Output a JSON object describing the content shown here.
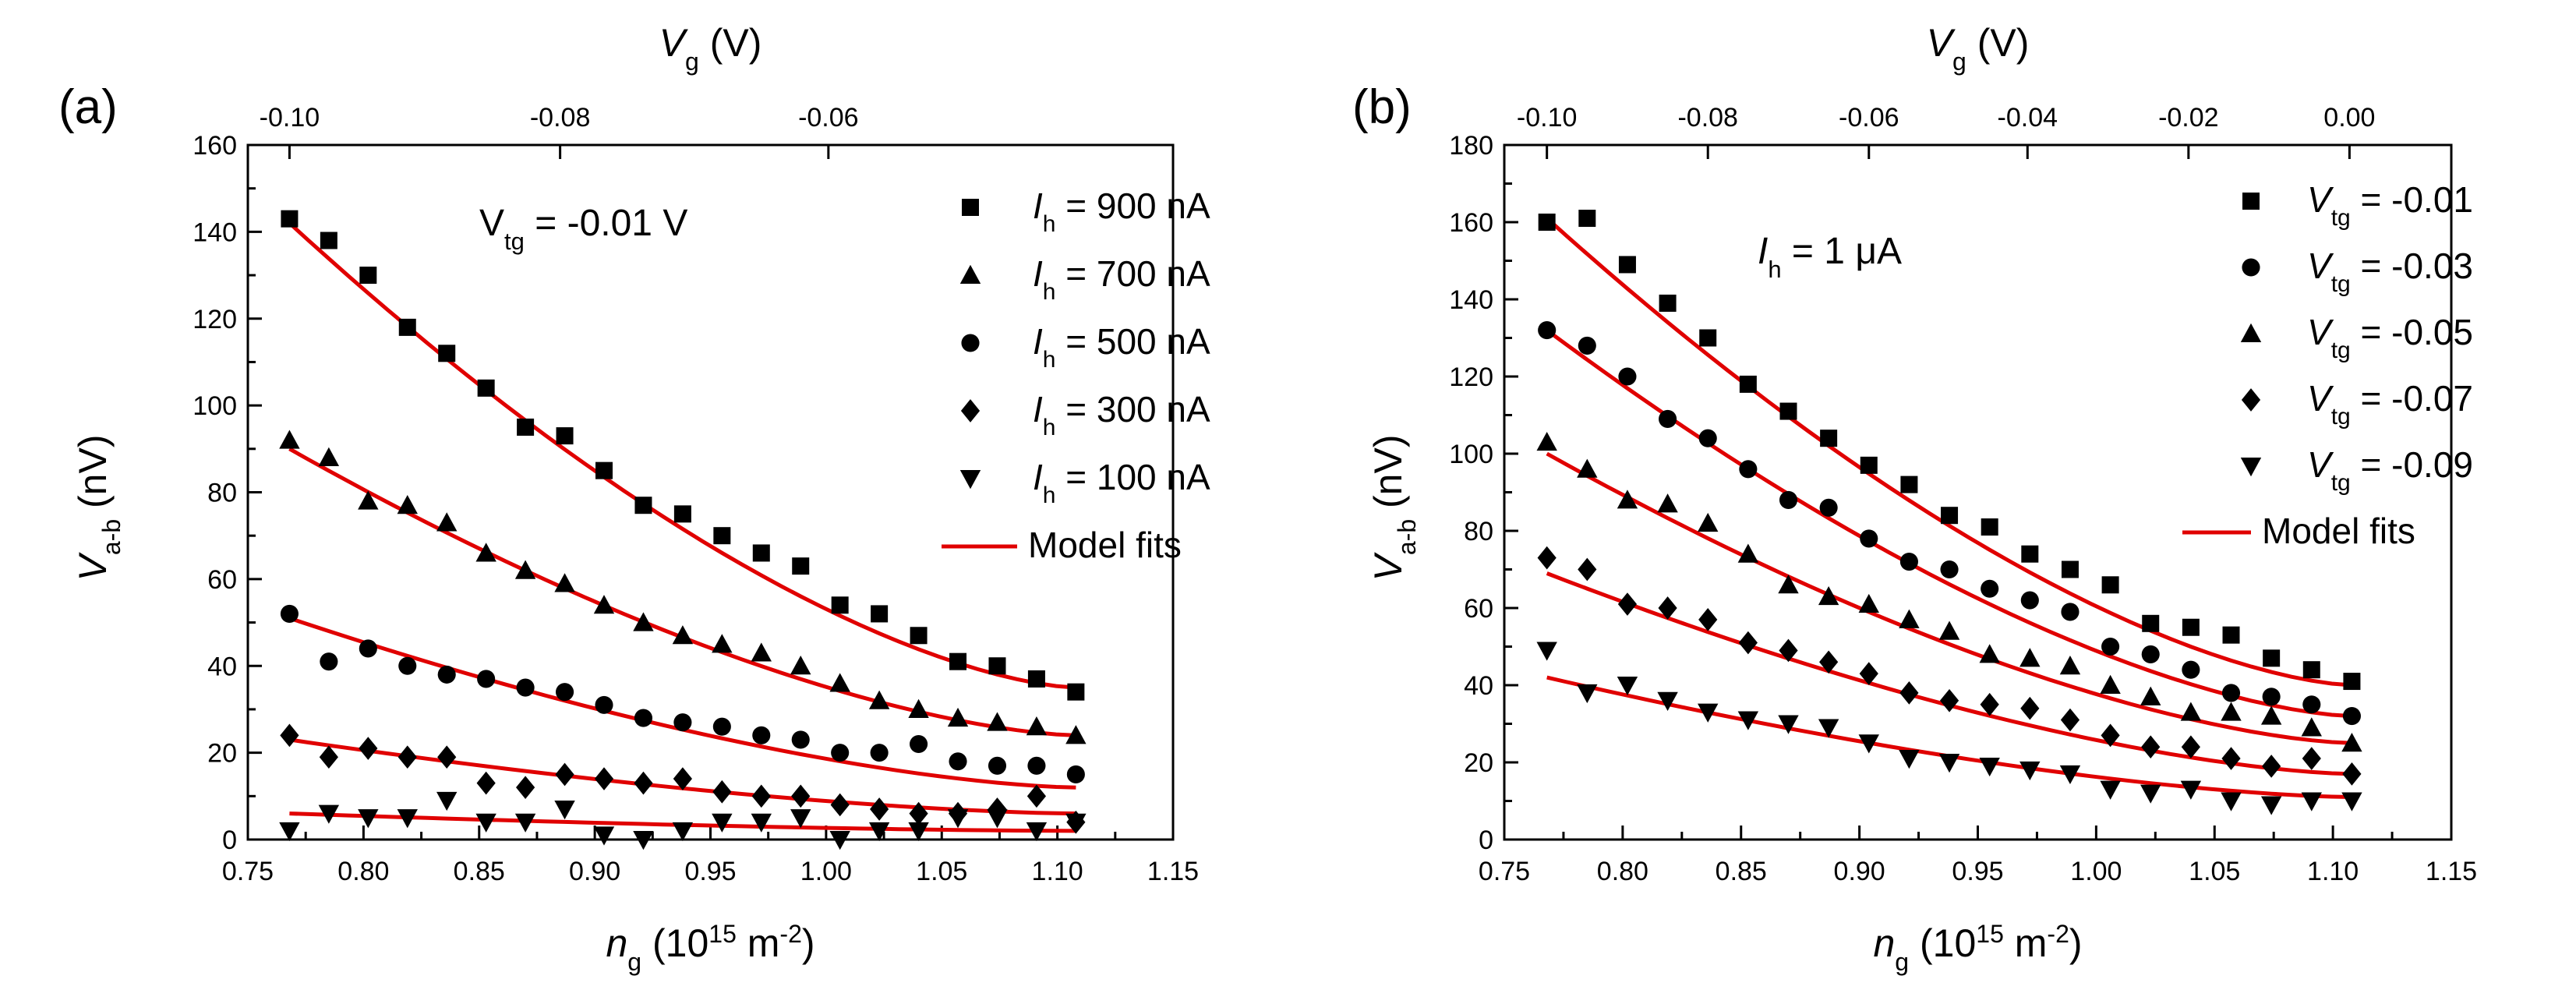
{
  "chart_data": [
    {
      "type": "scatter",
      "panel_label": "(a)",
      "annotation": {
        "symbol": "V",
        "sub": "tg",
        "text": " = -0.01 V"
      },
      "xlabel": {
        "symbol": "n",
        "sub": "g",
        "text": " (10",
        "sup": "15",
        "text2": " m",
        "sup2": "-2",
        "text3": ")"
      },
      "ylabel": {
        "symbol": "V",
        "sub": "a-b",
        "text": " (nV)"
      },
      "top_label": {
        "symbol": "V",
        "sub": "g",
        "text": " (V)"
      },
      "xlim": [
        0.75,
        1.15
      ],
      "ylim": [
        0,
        160
      ],
      "x_ticks": [
        "0.75",
        "0.80",
        "0.85",
        "0.90",
        "0.95",
        "1.00",
        "1.05",
        "1.10",
        "1.15"
      ],
      "y_ticks": [
        "0",
        "20",
        "40",
        "60",
        "80",
        "100",
        "120",
        "140",
        "160"
      ],
      "top_ticks": [
        {
          "label": "-0.10",
          "x": 0.768
        },
        {
          "label": "-0.08",
          "x": 0.885
        },
        {
          "label": "-0.06",
          "x": 1.001
        }
      ],
      "legend_location": "top-right",
      "x": [
        0.768,
        0.785,
        0.802,
        0.819,
        0.836,
        0.853,
        0.87,
        0.887,
        0.904,
        0.921,
        0.938,
        0.955,
        0.972,
        0.989,
        1.006,
        1.023,
        1.04,
        1.057,
        1.074,
        1.091,
        1.108
      ],
      "series": [
        {
          "name": "900 nA",
          "prefix": "I",
          "sub": "h",
          "marker": "square",
          "values": [
            143,
            138,
            130,
            118,
            112,
            104,
            95,
            93,
            85,
            77,
            75,
            70,
            66,
            63,
            54,
            52,
            47,
            41,
            40,
            37,
            34
          ]
        },
        {
          "name": "700 nA",
          "prefix": "I",
          "sub": "h",
          "marker": "triangle-up",
          "values": [
            92,
            88,
            78,
            77,
            73,
            66,
            62,
            59,
            54,
            50,
            47,
            45,
            43,
            40,
            36,
            32,
            30,
            28,
            27,
            26,
            24
          ]
        },
        {
          "name": "500 nA",
          "prefix": "I",
          "sub": "h",
          "marker": "circle",
          "values": [
            52,
            41,
            44,
            40,
            38,
            37,
            35,
            34,
            31,
            28,
            27,
            26,
            24,
            23,
            20,
            20,
            22,
            18,
            17,
            17,
            15
          ]
        },
        {
          "name": "300 nA",
          "prefix": "I",
          "sub": "h",
          "marker": "diamond",
          "values": [
            24,
            19,
            21,
            19,
            19,
            13,
            12,
            15,
            14,
            13,
            14,
            11,
            10,
            10,
            8,
            7,
            6,
            6,
            7,
            10,
            4
          ]
        },
        {
          "name": "100 nA",
          "prefix": "I",
          "sub": "h",
          "marker": "triangle-down",
          "values": [
            2,
            6,
            5,
            5,
            9,
            4,
            4,
            7,
            1,
            0,
            2,
            4,
            4,
            5,
            0,
            2,
            2,
            5,
            5,
            2,
            4
          ]
        }
      ],
      "fits": [
        [
          142,
          35
        ],
        [
          90,
          24
        ],
        [
          51,
          12
        ],
        [
          23,
          6
        ],
        [
          6,
          2
        ]
      ],
      "fit_legend": "Model fits"
    },
    {
      "type": "scatter",
      "panel_label": "(b)",
      "annotation": {
        "symbol": "I",
        "sub": "h",
        "text": " = 1 μA"
      },
      "xlabel": {
        "symbol": "n",
        "sub": "g",
        "text": " (10",
        "sup": "15",
        "text2": " m",
        "sup2": "-2",
        "text3": ")"
      },
      "ylabel": {
        "symbol": "V",
        "sub": "a-b",
        "text": " (nV)"
      },
      "top_label": {
        "symbol": "V",
        "sub": "g",
        "text": " (V)"
      },
      "xlim": [
        0.75,
        1.15
      ],
      "ylim": [
        0,
        180
      ],
      "x_ticks": [
        "0.75",
        "0.80",
        "0.85",
        "0.90",
        "0.95",
        "1.00",
        "1.05",
        "1.10",
        "1.15"
      ],
      "y_ticks": [
        "0",
        "20",
        "40",
        "60",
        "80",
        "100",
        "120",
        "140",
        "160",
        "180"
      ],
      "top_ticks": [
        {
          "label": "-0.10",
          "x": 0.768
        },
        {
          "label": "-0.08",
          "x": 0.836
        },
        {
          "label": "-0.06",
          "x": 0.904
        },
        {
          "label": "-0.04",
          "x": 0.971
        },
        {
          "label": "-0.02",
          "x": 1.039
        },
        {
          "label": "0.00",
          "x": 1.107
        }
      ],
      "legend_location": "top-right",
      "x": [
        0.768,
        0.785,
        0.802,
        0.819,
        0.836,
        0.853,
        0.87,
        0.887,
        0.904,
        0.921,
        0.938,
        0.955,
        0.972,
        0.989,
        1.006,
        1.023,
        1.04,
        1.057,
        1.074,
        1.091,
        1.108
      ],
      "series": [
        {
          "name": "-0.01",
          "prefix": "V",
          "sub": "tg",
          "marker": "square",
          "values": [
            160,
            161,
            149,
            139,
            130,
            118,
            111,
            104,
            97,
            92,
            84,
            81,
            74,
            70,
            66,
            56,
            55,
            53,
            47,
            44,
            41
          ]
        },
        {
          "name": "-0.03",
          "prefix": "V",
          "sub": "tg",
          "marker": "circle",
          "values": [
            132,
            128,
            120,
            109,
            104,
            96,
            88,
            86,
            78,
            72,
            70,
            65,
            62,
            59,
            50,
            48,
            44,
            38,
            37,
            35,
            32
          ]
        },
        {
          "name": "-0.05",
          "prefix": "V",
          "sub": "tg",
          "marker": "triangle-up",
          "values": [
            103,
            96,
            88,
            87,
            82,
            74,
            66,
            63,
            61,
            57,
            54,
            48,
            47,
            45,
            40,
            37,
            33,
            33,
            32,
            29,
            25
          ]
        },
        {
          "name": "-0.07",
          "prefix": "V",
          "sub": "tg",
          "marker": "diamond",
          "values": [
            73,
            70,
            61,
            60,
            57,
            51,
            49,
            46,
            43,
            38,
            36,
            35,
            34,
            31,
            27,
            24,
            24,
            21,
            19,
            21,
            17
          ]
        },
        {
          "name": "-0.09",
          "prefix": "V",
          "sub": "tg",
          "marker": "triangle-down",
          "values": [
            49,
            38,
            40,
            36,
            33,
            31,
            30,
            29,
            25,
            21,
            20,
            19,
            18,
            17,
            13,
            12,
            13,
            10,
            9,
            10,
            10
          ]
        }
      ],
      "fits": [
        [
          161,
          40
        ],
        [
          132,
          32
        ],
        [
          100,
          25
        ],
        [
          69,
          17
        ],
        [
          42,
          11
        ]
      ],
      "fit_legend": "Model fits"
    }
  ]
}
